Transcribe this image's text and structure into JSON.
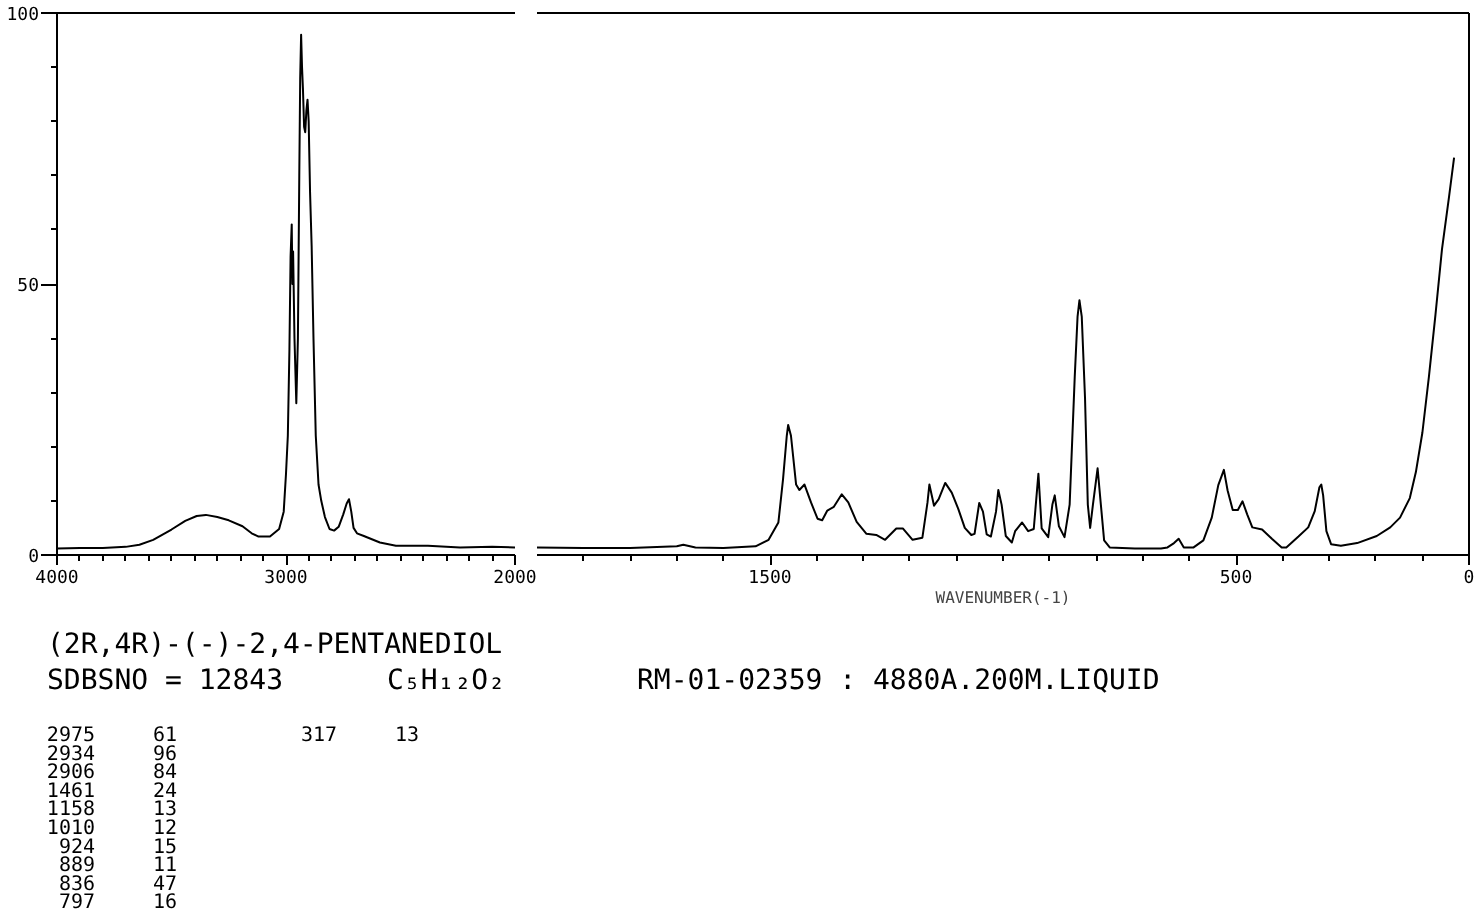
{
  "chart_data": [
    {
      "type": "line",
      "x": [
        4000,
        3900,
        3800,
        3700,
        3640,
        3580,
        3500,
        3440,
        3390,
        3350,
        3300,
        3250,
        3190,
        3150,
        3120,
        3070,
        3030,
        3010,
        3000,
        2992,
        2985,
        2980,
        2975,
        2972,
        2969,
        2963,
        2955,
        2948,
        2942,
        2938,
        2934,
        2930,
        2926,
        2921,
        2916,
        2911,
        2906,
        2901,
        2895,
        2888,
        2880,
        2870,
        2858,
        2846,
        2830,
        2810,
        2790,
        2770,
        2750,
        2735,
        2725,
        2715,
        2705,
        2690,
        2660,
        2590,
        2520,
        2380,
        2240,
        2100,
        2000
      ],
      "series": [
        {
          "color": "#000000",
          "values": [
            1.2,
            1.3,
            1.3,
            1.5,
            1.9,
            2.8,
            4.7,
            6.3,
            7.2,
            7.4,
            7.0,
            6.4,
            5.3,
            4.0,
            3.4,
            3.4,
            4.8,
            8,
            15,
            22,
            38,
            55,
            61,
            50,
            56,
            40,
            28,
            40,
            70,
            88,
            96,
            90,
            86,
            79,
            78,
            82,
            84,
            80,
            67,
            57,
            40,
            22,
            13,
            10,
            7,
            4.8,
            4.5,
            5.2,
            7.5,
            9.5,
            10.3,
            8,
            5,
            4,
            3.5,
            2.3,
            1.7,
            1.7,
            1.4,
            1.5,
            1.4
          ]
        }
      ],
      "xlim": [
        4000,
        2000
      ],
      "xticks": [
        4000,
        {
          "value": 3900,
          "label": null
        },
        {
          "value": 3800,
          "label": null
        },
        {
          "value": 3700,
          "label": null
        },
        {
          "value": 3600,
          "label": null
        },
        {
          "value": 3500,
          "label": null
        },
        {
          "value": 3400,
          "label": null
        },
        {
          "value": 3300,
          "label": null
        },
        {
          "value": 3200,
          "label": null
        },
        {
          "value": 3100,
          "label": null
        },
        3000,
        {
          "value": 2900,
          "label": null
        },
        {
          "value": 2800,
          "label": null
        },
        {
          "value": 2700,
          "label": null
        },
        {
          "value": 2600,
          "label": null
        },
        {
          "value": 2500,
          "label": null
        },
        {
          "value": 2400,
          "label": null
        },
        {
          "value": 2300,
          "label": null
        },
        {
          "value": 2200,
          "label": null
        },
        {
          "value": 2100,
          "label": null
        },
        2000
      ],
      "ylim": [
        0,
        100
      ],
      "yticks": [
        0,
        {
          "value": 10,
          "label": null
        },
        {
          "value": 20,
          "label": null
        },
        {
          "value": 30,
          "label": null
        },
        {
          "value": 40,
          "label": null
        },
        50,
        {
          "value": 60,
          "label": null
        },
        {
          "value": 70,
          "label": null
        },
        {
          "value": 80,
          "label": null
        },
        {
          "value": 90,
          "label": null
        },
        100
      ],
      "annotations": [
        "(2R,4R)-(-)-2,4-PENTANEDIOL",
        "SDBSNO = 12843",
        "C₅H₁₂O₂",
        "RM-01-02359 : 4880A.200M.LIQUID",
        "2975",
        "61",
        "2934",
        "96",
        "2906",
        "84",
        "1461",
        "24",
        "1158",
        "13",
        "1010",
        "12",
        "924",
        "15",
        "889",
        "11",
        "836",
        "47",
        "797",
        "16",
        "317",
        "13"
      ]
    },
    {
      "type": "line",
      "x": [
        2000,
        1900,
        1800,
        1700,
        1686,
        1660,
        1600,
        1531,
        1503,
        1482,
        1472,
        1464,
        1461,
        1455,
        1444,
        1437,
        1426,
        1412,
        1398,
        1388,
        1377,
        1363,
        1346,
        1332,
        1314,
        1293,
        1272,
        1253,
        1229,
        1215,
        1194,
        1173,
        1162,
        1158,
        1148,
        1138,
        1124,
        1110,
        1096,
        1082,
        1068,
        1061,
        1051,
        1043,
        1035,
        1026,
        1015,
        1010,
        1003,
        994,
        981,
        974,
        959,
        946,
        934,
        924,
        917,
        903,
        894,
        889,
        880,
        868,
        857,
        846,
        840,
        836,
        831,
        824,
        818,
        813,
        807,
        797,
        790,
        783,
        771,
        717,
        661,
        647,
        633,
        623,
        612,
        591,
        570,
        552,
        538,
        526,
        518,
        507,
        496,
        486,
        476,
        465,
        444,
        423,
        402,
        392,
        366,
        345,
        331,
        321,
        317,
        313,
        306,
        296,
        275,
        240,
        198,
        169,
        148,
        127,
        114,
        100,
        86,
        72,
        58,
        43,
        32
      ],
      "series": [
        {
          "color": "#000000",
          "values": [
            1.4,
            1.3,
            1.3,
            1.6,
            1.9,
            1.4,
            1.3,
            1.6,
            2.8,
            6,
            14,
            22,
            24,
            22,
            13,
            12,
            13,
            9.7,
            6.7,
            6.4,
            8.2,
            8.9,
            11.2,
            9.7,
            6.1,
            3.9,
            3.7,
            2.8,
            4.9,
            4.9,
            2.8,
            3.2,
            9.7,
            13,
            9.1,
            10.3,
            13.3,
            11.5,
            8.5,
            5,
            3.7,
            3.9,
            9.6,
            8,
            3.8,
            3.4,
            8,
            12,
            9.3,
            3.5,
            2.3,
            4.4,
            6,
            4.4,
            4.8,
            15,
            4.9,
            3.3,
            9.3,
            11,
            5.3,
            3.3,
            9.3,
            33,
            44,
            47,
            44,
            29,
            9.3,
            5,
            9.3,
            16,
            9.3,
            2.7,
            1.4,
            1.2,
            1.2,
            1.4,
            2.2,
            3,
            1.4,
            1.4,
            2.7,
            6.9,
            12.9,
            15.7,
            11.9,
            8.3,
            8.3,
            9.9,
            7.5,
            5.1,
            4.7,
            3,
            1.4,
            1.4,
            3.4,
            5.1,
            8.1,
            12.5,
            13,
            11,
            4.4,
            2,
            1.7,
            2.2,
            3.5,
            5.1,
            6.9,
            10.5,
            15.3,
            22.6,
            32.9,
            44.3,
            56.4,
            66,
            73.3
          ]
        }
      ],
      "xlim": [
        2000,
        0
      ],
      "xticks": [
        {
          "value": 1900,
          "label": null
        },
        {
          "value": 1800,
          "label": null
        },
        {
          "value": 1700,
          "label": null
        },
        {
          "value": 1600,
          "label": null
        },
        1500,
        {
          "value": 1400,
          "label": null
        },
        {
          "value": 1300,
          "label": null
        },
        {
          "value": 1200,
          "label": null
        },
        {
          "value": 1100,
          "label": null
        },
        {
          "value": 1000,
          "label": null
        },
        {
          "value": 900,
          "label": null
        },
        {
          "value": 800,
          "label": null
        },
        {
          "value": 700,
          "label": null
        },
        {
          "value": 600,
          "label": null
        },
        500,
        {
          "value": 400,
          "label": null
        },
        {
          "value": 300,
          "label": null
        },
        {
          "value": 200,
          "label": null
        },
        {
          "value": 100,
          "label": null
        },
        0
      ],
      "ylim": [
        0,
        100
      ],
      "tick_labels": "x",
      "xlabel": "WAVENUMBER(-1)"
    }
  ]
}
